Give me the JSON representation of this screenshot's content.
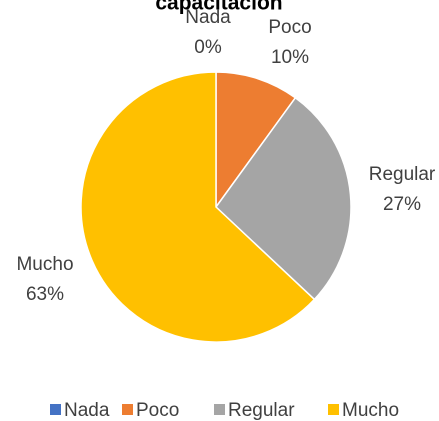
{
  "chart_data": {
    "type": "pie",
    "title": "capacitación",
    "categories": [
      "Nada",
      "Poco",
      "Regular",
      "Mucho"
    ],
    "values": [
      0,
      10,
      27,
      63
    ],
    "value_labels": [
      "0%",
      "10%",
      "27%",
      "63%"
    ],
    "colors": [
      "#4472c4",
      "#ed7d31",
      "#a5a5a5",
      "#ffc000"
    ],
    "legend": "bottom"
  }
}
